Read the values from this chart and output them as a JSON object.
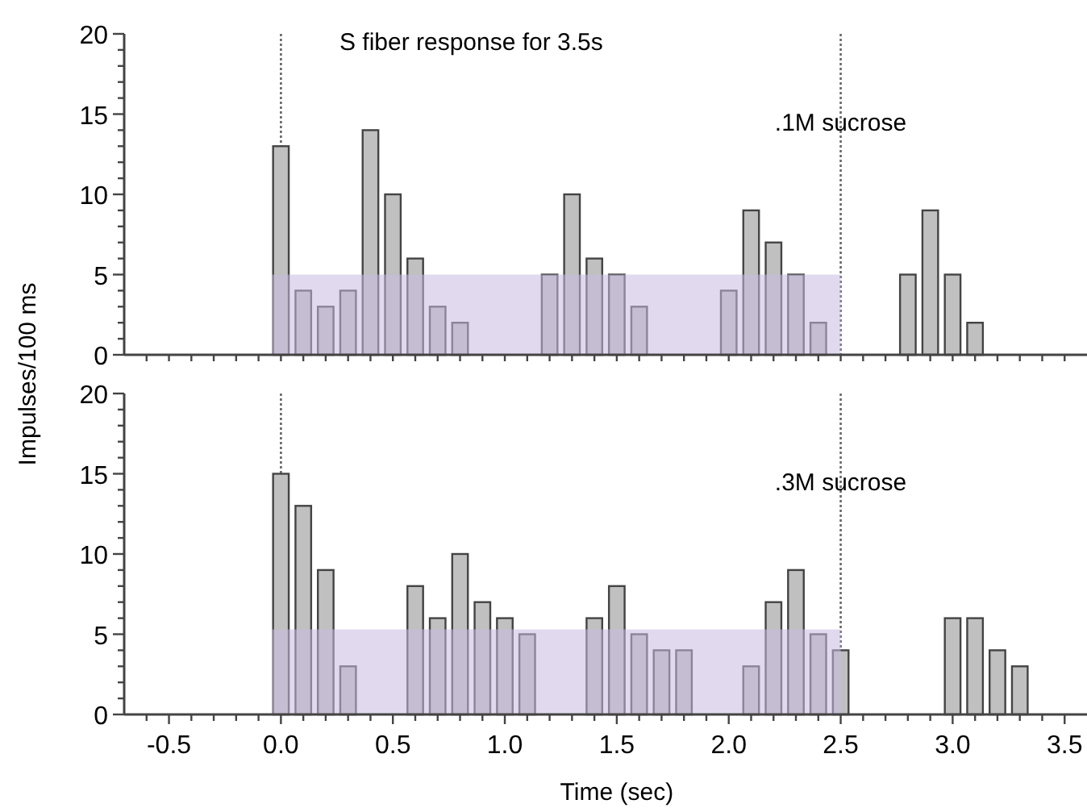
{
  "chart_data": [
    {
      "type": "bar",
      "title": "S fiber response for 3.5s",
      "ylabel": "Impulses/100 ms",
      "annotations": [
        ".1M sucrose"
      ],
      "xlim": [
        -0.7,
        3.6
      ],
      "ylim": [
        0,
        20
      ],
      "tick_labels": "y",
      "xticks": [
        {
          "value": -0.5,
          "label": null
        },
        {
          "value": 0,
          "label": null
        },
        {
          "value": 0.5,
          "label": null
        },
        {
          "value": 1,
          "label": null
        },
        {
          "value": 1.5,
          "label": null
        },
        {
          "value": 2,
          "label": null
        },
        {
          "value": 2.5,
          "label": null
        },
        {
          "value": 3,
          "label": null
        },
        {
          "value": 3.5,
          "label": null
        },
        {
          "value": -0.6,
          "label": null
        },
        {
          "value": -0.4,
          "label": null
        },
        {
          "value": -0.3,
          "label": null
        },
        {
          "value": -0.2,
          "label": null
        },
        {
          "value": -0.1,
          "label": null
        },
        {
          "value": 0.1,
          "label": null
        },
        {
          "value": 0.2,
          "label": null
        },
        {
          "value": 0.3,
          "label": null
        },
        {
          "value": 0.4,
          "label": null
        },
        {
          "value": 0.6,
          "label": null
        },
        {
          "value": 0.7,
          "label": null
        },
        {
          "value": 0.8,
          "label": null
        },
        {
          "value": 0.9,
          "label": null
        },
        {
          "value": 1.1,
          "label": null
        },
        {
          "value": 1.2,
          "label": null
        },
        {
          "value": 1.3,
          "label": null
        },
        {
          "value": 1.4,
          "label": null
        },
        {
          "value": 1.6,
          "label": null
        },
        {
          "value": 1.7,
          "label": null
        },
        {
          "value": 1.8,
          "label": null
        },
        {
          "value": 1.9,
          "label": null
        },
        {
          "value": 2.1,
          "label": null
        },
        {
          "value": 2.2,
          "label": null
        },
        {
          "value": 2.3,
          "label": null
        },
        {
          "value": 2.4,
          "label": null
        },
        {
          "value": 2.6,
          "label": null
        },
        {
          "value": 2.7,
          "label": null
        },
        {
          "value": 2.8,
          "label": null
        },
        {
          "value": 2.9,
          "label": null
        },
        {
          "value": 3.1,
          "label": null
        },
        {
          "value": 3.2,
          "label": null
        },
        {
          "value": 3.3,
          "label": null
        },
        {
          "value": 3.4,
          "label": null
        }
      ],
      "yticks": [
        0,
        5,
        10,
        15,
        20,
        {
          "value": 1,
          "label": null
        },
        {
          "value": 2,
          "label": null
        },
        {
          "value": 3,
          "label": null
        },
        {
          "value": 4,
          "label": null
        },
        {
          "value": 6,
          "label": null
        },
        {
          "value": 7,
          "label": null
        },
        {
          "value": 8,
          "label": null
        },
        {
          "value": 9,
          "label": null
        },
        {
          "value": 11,
          "label": null
        },
        {
          "value": 12,
          "label": null
        },
        {
          "value": 13,
          "label": null
        },
        {
          "value": 14,
          "label": null
        },
        {
          "value": 16,
          "label": null
        },
        {
          "value": 17,
          "label": null
        },
        {
          "value": 18,
          "label": null
        },
        {
          "value": 19,
          "label": null
        }
      ],
      "ref_lines": [
        {
          "axis": "x",
          "value": 0,
          "line_style": "dotted",
          "color": "#666666"
        },
        {
          "axis": "x",
          "value": 2.5,
          "line_style": "dotted",
          "color": "#666666"
        }
      ],
      "series": [
        {
          "color": "#c0c0c0",
          "x": [
            0,
            0.1,
            0.2,
            0.3,
            0.4,
            0.5,
            0.6,
            0.7,
            0.8,
            1.2,
            1.3,
            1.4,
            1.5,
            1.6,
            2.0,
            2.1,
            2.2,
            2.3,
            2.4,
            2.8,
            2.9,
            3.0,
            3.1
          ],
          "values": [
            13,
            4,
            3,
            4,
            14,
            10,
            6,
            3,
            2,
            5,
            10,
            6,
            5,
            3,
            4,
            9,
            7,
            5,
            2,
            5,
            9,
            5,
            2
          ]
        },
        {
          "type": "area",
          "color": "#c9bce0",
          "x": [
            -0.04,
            2.5
          ],
          "values": [
            5,
            5
          ]
        }
      ]
    },
    {
      "type": "bar",
      "xlabel": "Time (sec)",
      "annotations": [
        ".3M  sucrose"
      ],
      "xlim": [
        -0.7,
        3.6
      ],
      "ylim": [
        0,
        20
      ],
      "xticks": [
        {
          "value": -0.5,
          "label": "-0.5"
        },
        {
          "value": 0,
          "label": "0.0"
        },
        {
          "value": 0.5,
          "label": "0.5"
        },
        {
          "value": 1,
          "label": "1.0"
        },
        {
          "value": 1.5,
          "label": "1.5"
        },
        {
          "value": 2,
          "label": "2.0"
        },
        {
          "value": 2.5,
          "label": "2.5"
        },
        {
          "value": 3,
          "label": "3.0"
        },
        {
          "value": 3.5,
          "label": "3.5"
        },
        {
          "value": -0.6,
          "label": null
        },
        {
          "value": -0.4,
          "label": null
        },
        {
          "value": -0.3,
          "label": null
        },
        {
          "value": -0.2,
          "label": null
        },
        {
          "value": -0.1,
          "label": null
        },
        {
          "value": 0.1,
          "label": null
        },
        {
          "value": 0.2,
          "label": null
        },
        {
          "value": 0.3,
          "label": null
        },
        {
          "value": 0.4,
          "label": null
        },
        {
          "value": 0.6,
          "label": null
        },
        {
          "value": 0.7,
          "label": null
        },
        {
          "value": 0.8,
          "label": null
        },
        {
          "value": 0.9,
          "label": null
        },
        {
          "value": 1.1,
          "label": null
        },
        {
          "value": 1.2,
          "label": null
        },
        {
          "value": 1.3,
          "label": null
        },
        {
          "value": 1.4,
          "label": null
        },
        {
          "value": 1.6,
          "label": null
        },
        {
          "value": 1.7,
          "label": null
        },
        {
          "value": 1.8,
          "label": null
        },
        {
          "value": 1.9,
          "label": null
        },
        {
          "value": 2.1,
          "label": null
        },
        {
          "value": 2.2,
          "label": null
        },
        {
          "value": 2.3,
          "label": null
        },
        {
          "value": 2.4,
          "label": null
        },
        {
          "value": 2.6,
          "label": null
        },
        {
          "value": 2.7,
          "label": null
        },
        {
          "value": 2.8,
          "label": null
        },
        {
          "value": 2.9,
          "label": null
        },
        {
          "value": 3.1,
          "label": null
        },
        {
          "value": 3.2,
          "label": null
        },
        {
          "value": 3.3,
          "label": null
        },
        {
          "value": 3.4,
          "label": null
        }
      ],
      "yticks": [
        0,
        5,
        10,
        15,
        20,
        {
          "value": 1,
          "label": null
        },
        {
          "value": 2,
          "label": null
        },
        {
          "value": 3,
          "label": null
        },
        {
          "value": 4,
          "label": null
        },
        {
          "value": 6,
          "label": null
        },
        {
          "value": 7,
          "label": null
        },
        {
          "value": 8,
          "label": null
        },
        {
          "value": 9,
          "label": null
        },
        {
          "value": 11,
          "label": null
        },
        {
          "value": 12,
          "label": null
        },
        {
          "value": 13,
          "label": null
        },
        {
          "value": 14,
          "label": null
        },
        {
          "value": 16,
          "label": null
        },
        {
          "value": 17,
          "label": null
        },
        {
          "value": 18,
          "label": null
        },
        {
          "value": 19,
          "label": null
        }
      ],
      "ref_lines": [
        {
          "axis": "x",
          "value": 0,
          "line_style": "dotted",
          "color": "#666666"
        },
        {
          "axis": "x",
          "value": 2.5,
          "line_style": "dotted",
          "color": "#666666"
        }
      ],
      "series": [
        {
          "color": "#c0c0c0",
          "x": [
            0,
            0.1,
            0.2,
            0.3,
            0.6,
            0.7,
            0.8,
            0.9,
            1.0,
            1.1,
            1.4,
            1.5,
            1.6,
            1.7,
            1.8,
            2.1,
            2.2,
            2.3,
            2.4,
            2.5,
            3.0,
            3.1,
            3.2,
            3.3
          ],
          "values": [
            15,
            13,
            9,
            3,
            8,
            6,
            10,
            7,
            6,
            5,
            6,
            8,
            5,
            4,
            4,
            3,
            7,
            9,
            5,
            4,
            6,
            6,
            4,
            3
          ]
        },
        {
          "type": "area",
          "color": "#c9bce0",
          "x": [
            -0.04,
            2.5
          ],
          "values": [
            5.3,
            5.3
          ]
        }
      ]
    }
  ]
}
